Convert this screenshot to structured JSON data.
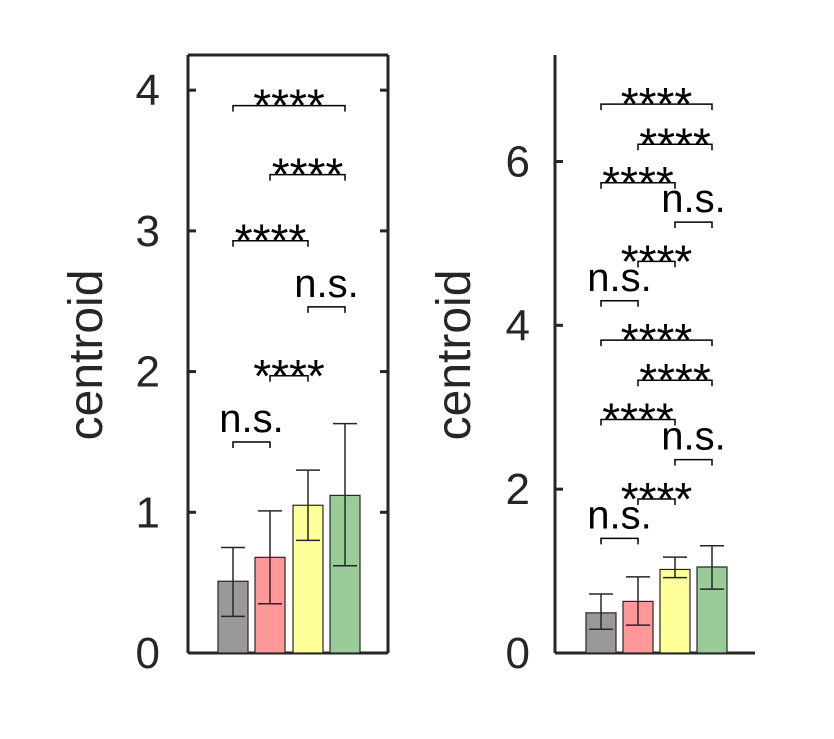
{
  "colors": {
    "axis": "#262626",
    "bar_colors": [
      "#999999",
      "#ff9999",
      "#ffff99",
      "#99cc99"
    ],
    "bar_edge": "#262626",
    "errorbar": "#262626",
    "bracket": "#000000"
  },
  "chart_data": [
    {
      "type": "bar",
      "title": "",
      "xlabel": "",
      "ylabel": "centroid",
      "ylim": [
        0,
        4.25
      ],
      "yticks": [
        0,
        1,
        2,
        3,
        4
      ],
      "ytick_labels": [
        "0",
        "1",
        "2",
        "3",
        "4"
      ],
      "box": true,
      "grid": false,
      "bars": [
        {
          "value": 0.51,
          "err_low": 0.26,
          "err_high": 0.75
        },
        {
          "value": 0.68,
          "err_low": 0.35,
          "err_high": 1.01
        },
        {
          "value": 1.05,
          "err_low": 0.8,
          "err_high": 1.3
        },
        {
          "value": 1.12,
          "err_low": 0.62,
          "err_high": 1.63
        }
      ],
      "comparisons": [
        {
          "from": 0,
          "to": 1,
          "label": "n.s.",
          "y": 1.5
        },
        {
          "from": 1,
          "to": 2,
          "label": "****",
          "y": 1.97
        },
        {
          "from": 2,
          "to": 3,
          "label": "n.s.",
          "y": 2.46
        },
        {
          "from": 0,
          "to": 2,
          "label": "****",
          "y": 2.93
        },
        {
          "from": 1,
          "to": 3,
          "label": "****",
          "y": 3.4
        },
        {
          "from": 0,
          "to": 3,
          "label": "****",
          "y": 3.89
        }
      ]
    },
    {
      "type": "bar",
      "title": "",
      "xlabel": "",
      "ylabel": "centroid",
      "ylim": [
        0,
        7.3
      ],
      "yticks": [
        0,
        2,
        4,
        6
      ],
      "ytick_labels": [
        "0",
        "2",
        "4",
        "6"
      ],
      "box": false,
      "grid": false,
      "bars": [
        {
          "value": 0.49,
          "err_low": 0.29,
          "err_high": 0.72
        },
        {
          "value": 0.63,
          "err_low": 0.34,
          "err_high": 0.93
        },
        {
          "value": 1.02,
          "err_low": 0.92,
          "err_high": 1.17
        },
        {
          "value": 1.05,
          "err_low": 0.78,
          "err_high": 1.31
        }
      ],
      "comparisons": [
        {
          "from": 0,
          "to": 1,
          "label": "n.s.",
          "y": 1.4
        },
        {
          "from": 1,
          "to": 2,
          "label": "****",
          "y": 1.88
        },
        {
          "from": 2,
          "to": 3,
          "label": "n.s.",
          "y": 2.36
        },
        {
          "from": 0,
          "to": 2,
          "label": "****",
          "y": 2.85
        },
        {
          "from": 1,
          "to": 3,
          "label": "****",
          "y": 3.33
        },
        {
          "from": 0,
          "to": 3,
          "label": "****",
          "y": 3.82
        },
        {
          "from": 0,
          "to": 1,
          "label": "n.s.",
          "y": 4.3
        },
        {
          "from": 1,
          "to": 2,
          "label": "****",
          "y": 4.78
        },
        {
          "from": 2,
          "to": 3,
          "label": "n.s.",
          "y": 5.26
        },
        {
          "from": 0,
          "to": 2,
          "label": "****",
          "y": 5.74
        },
        {
          "from": 1,
          "to": 3,
          "label": "****",
          "y": 6.21
        },
        {
          "from": 0,
          "to": 3,
          "label": "****",
          "y": 6.7
        }
      ]
    }
  ]
}
